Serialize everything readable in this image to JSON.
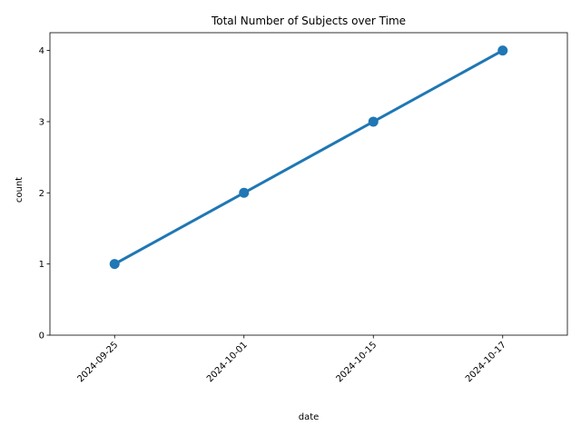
{
  "chart_data": {
    "type": "line",
    "title": "Total Number of Subjects over Time",
    "xlabel": "date",
    "ylabel": "count",
    "categories": [
      "2024-09-25",
      "2024-10-01",
      "2024-10-15",
      "2024-10-17"
    ],
    "series": [
      {
        "values": [
          1,
          2,
          3,
          4
        ],
        "color": "#1f77b4"
      }
    ],
    "yticks": [
      0,
      1,
      2,
      3,
      4
    ],
    "ylim": [
      0,
      4.25
    ],
    "grid": false,
    "legend": "none"
  }
}
